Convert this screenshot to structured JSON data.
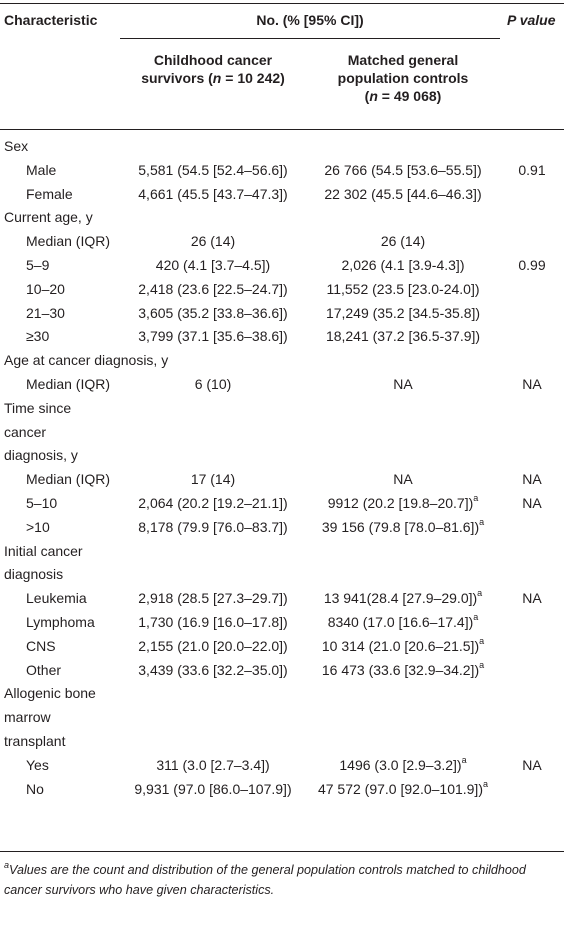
{
  "header": {
    "characteristic": "Characteristic",
    "no_group": "No. (% [95% CI])",
    "p_value": "P value",
    "sub1_line1": "Childhood cancer",
    "sub1_line2_a": "survivors (",
    "sub1_line2_n": "n",
    "sub1_line2_b": " = 10 242)",
    "sub2_line1": "Matched general",
    "sub2_line2": "population controls",
    "sub2_line3_a": "(",
    "sub2_line3_n": "n",
    "sub2_line3_b": " = 49 068)"
  },
  "rows": [
    {
      "label": "Sex",
      "indent": false
    },
    {
      "label": "Male",
      "indent": true,
      "survivors": "5,581 (54.5 [52.4–56.6])",
      "controls": "26 766 (54.5 [53.6–55.5])",
      "sup": "",
      "p": "0.91"
    },
    {
      "label": "Female",
      "indent": true,
      "survivors": "4,661 (45.5 [43.7–47.3])",
      "controls": "22 302 (45.5 [44.6–46.3])",
      "sup": "",
      "p": ""
    },
    {
      "label": "Current age, y",
      "indent": false
    },
    {
      "label": "Median (IQR)",
      "indent": true,
      "survivors": "26 (14)",
      "controls": "26 (14)",
      "sup": "",
      "p": ""
    },
    {
      "label": "5–9",
      "indent": true,
      "survivors": "420 (4.1 [3.7–4.5])",
      "controls": "2,026 (4.1 [3.9-4.3])",
      "sup": "",
      "p": "0.99"
    },
    {
      "label": "10–20",
      "indent": true,
      "survivors": "2,418 (23.6 [22.5–24.7])",
      "controls": "11,552 (23.5 [23.0-24.0])",
      "sup": "",
      "p": ""
    },
    {
      "label": "21–30",
      "indent": true,
      "survivors": "3,605 (35.2 [33.8–36.6])",
      "controls": "17,249 (35.2 [34.5-35.8])",
      "sup": "",
      "p": ""
    },
    {
      "label": "≥30",
      "indent": true,
      "survivors": "3,799 (37.1 [35.6–38.6])",
      "controls": "18,241 (37.2 [36.5-37.9])",
      "sup": "",
      "p": ""
    },
    {
      "label": "Age at cancer diagnosis, y",
      "indent": false
    },
    {
      "label": "Median (IQR)",
      "indent": true,
      "survivors": "6 (10)",
      "controls": "NA",
      "sup": "",
      "p": "NA"
    },
    {
      "label": "Time since",
      "indent": false
    },
    {
      "label": "cancer",
      "indent": false
    },
    {
      "label": "diagnosis, y",
      "indent": false
    },
    {
      "label": "Median (IQR)",
      "indent": true,
      "survivors": "17 (14)",
      "controls": "NA",
      "sup": "",
      "p": "NA"
    },
    {
      "label": "5–10",
      "indent": true,
      "survivors": "2,064 (20.2 [19.2–21.1])",
      "controls": "9912 (20.2 [19.8–20.7])",
      "sup": "a",
      "p": "NA"
    },
    {
      "label": ">10",
      "indent": true,
      "survivors": "8,178 (79.9 [76.0–83.7])",
      "controls": "39 156 (79.8 [78.0–81.6])",
      "sup": "a",
      "p": ""
    },
    {
      "label": "Initial cancer",
      "indent": false
    },
    {
      "label": "diagnosis",
      "indent": false
    },
    {
      "label": "Leukemia",
      "indent": true,
      "survivors": "2,918 (28.5 [27.3–29.7])",
      "controls": "13 941(28.4 [27.9–29.0])",
      "sup": "a",
      "p": "NA"
    },
    {
      "label": "Lymphoma",
      "indent": true,
      "survivors": "1,730 (16.9 [16.0–17.8])",
      "controls": "8340 (17.0 [16.6–17.4])",
      "sup": "a",
      "p": ""
    },
    {
      "label": "CNS",
      "indent": true,
      "survivors": "2,155 (21.0 [20.0–22.0])",
      "controls": "10 314 (21.0 [20.6–21.5])",
      "sup": "a",
      "p": ""
    },
    {
      "label": "Other",
      "indent": true,
      "survivors": "3,439 (33.6 [32.2–35.0])",
      "controls": "16 473 (33.6 [32.9–34.2])",
      "sup": "a",
      "p": ""
    },
    {
      "label": "Allogenic bone",
      "indent": false
    },
    {
      "label": "marrow",
      "indent": false
    },
    {
      "label": "transplant",
      "indent": false
    },
    {
      "label": "Yes",
      "indent": true,
      "survivors": "311 (3.0 [2.7–3.4])",
      "controls": "1496 (3.0 [2.9–3.2])",
      "sup": "a",
      "p": "NA"
    },
    {
      "label": "No",
      "indent": true,
      "survivors": "9,931 (97.0 [86.0–107.9])",
      "controls": "47 572 (97.0 [92.0–101.9])",
      "sup": "a",
      "p": ""
    }
  ],
  "footnote": {
    "mark": "a",
    "text": "Values are the count and distribution of the general population controls matched to childhood cancer survivors who have given characteristics."
  }
}
